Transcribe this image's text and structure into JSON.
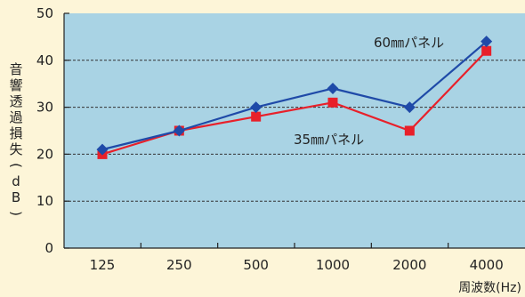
{
  "chart_data": {
    "type": "line",
    "categories": [
      "125",
      "250",
      "500",
      "1000",
      "2000",
      "4000"
    ],
    "series": [
      {
        "name": "60㎜パネル",
        "values": [
          21,
          25,
          30,
          34,
          30,
          44
        ],
        "color": "#1f4aa8",
        "marker": "diamond"
      },
      {
        "name": "35㎜パネル",
        "values": [
          20,
          25,
          28,
          31,
          25,
          42
        ],
        "color": "#e8202a",
        "marker": "square"
      }
    ],
    "ylabel": "音響透過損失(dB)",
    "xlabel": "周波数(Hz)",
    "ylim": [
      0,
      50
    ],
    "yticks": [
      0,
      10,
      20,
      30,
      40,
      50
    ],
    "grid": true,
    "grid_style": "dashed",
    "plot_background": "#a9d3e4",
    "page_background": "#fdf5d8"
  }
}
